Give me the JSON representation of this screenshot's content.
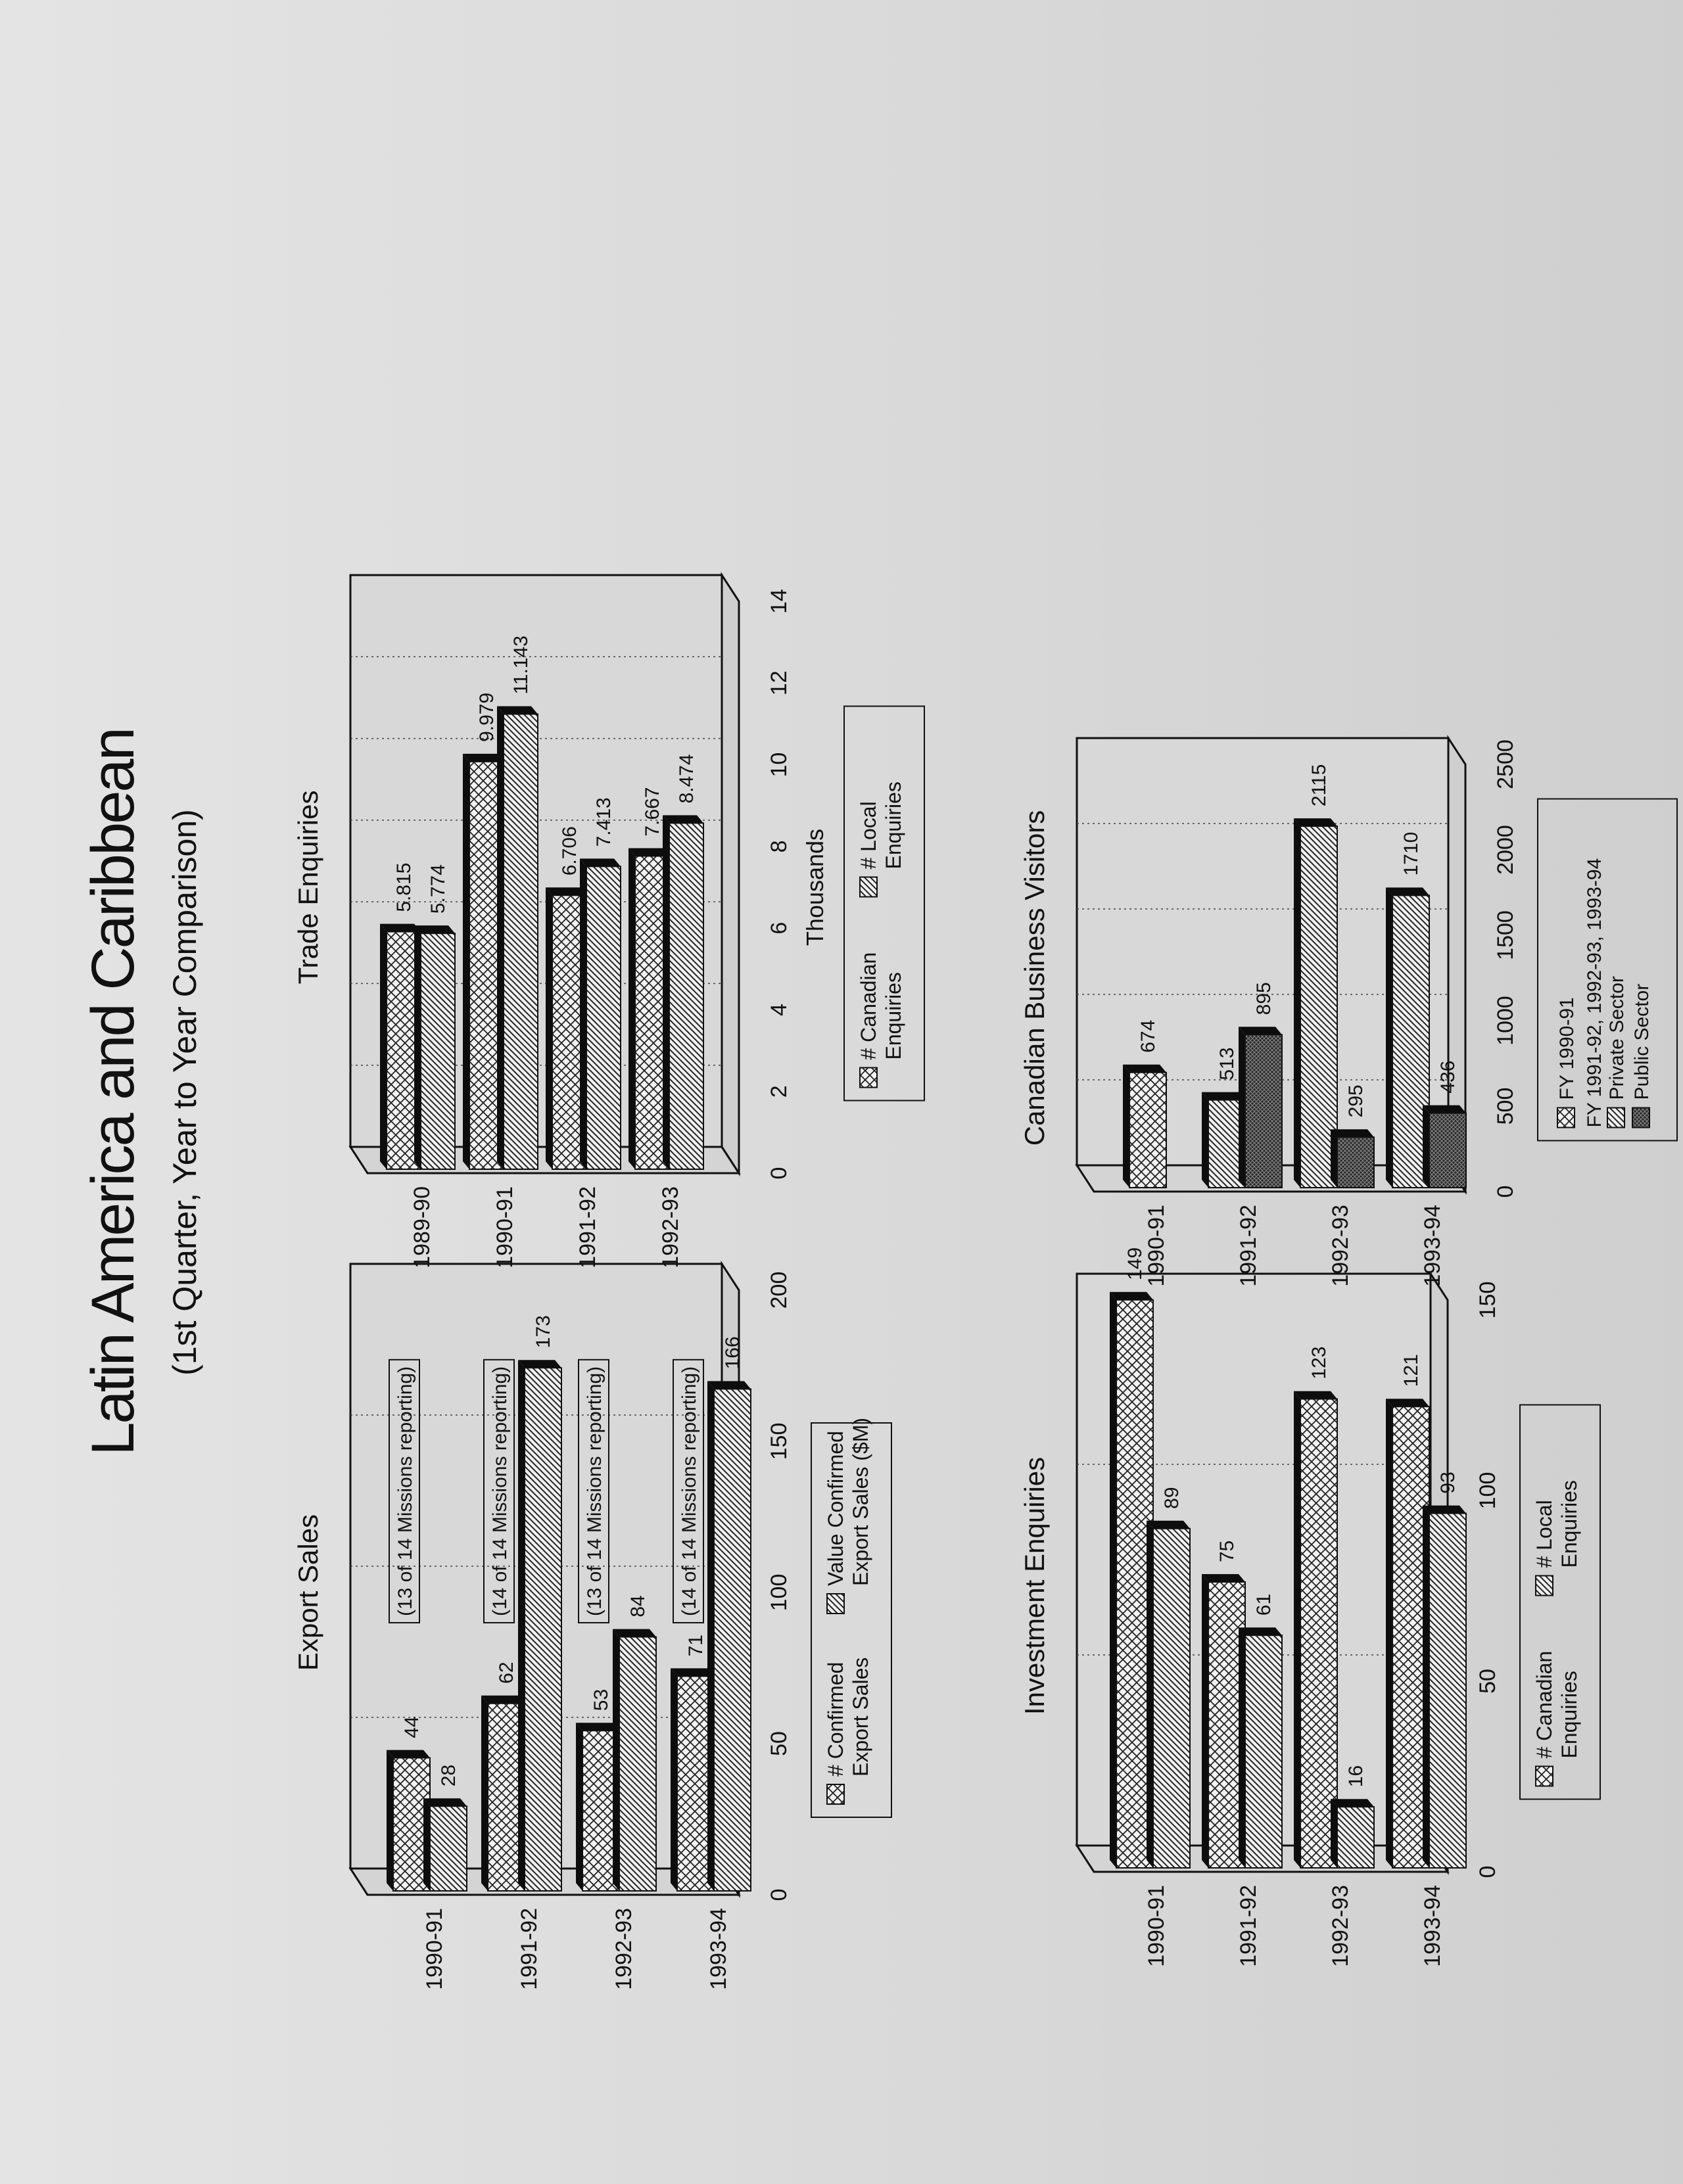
{
  "page": {
    "title": "Latin America and Caribbean",
    "subtitle": "(1st Quarter, Year to Year Comparison)"
  },
  "colors": {
    "page": "#dcdcdc",
    "ink": "#111111",
    "bar_top": "#0d0d0d"
  },
  "chart_data": [
    {
      "id": "export",
      "type": "bar",
      "orientation": "horizontal",
      "title": "Export Sales",
      "categories": [
        "1990-91",
        "1991-92",
        "1992-93",
        "1993-94"
      ],
      "series": [
        {
          "name": "# Confirmed Export Sales",
          "pattern": "crosshatch",
          "values": [
            44,
            62,
            53,
            71
          ]
        },
        {
          "name": "Value Confirmed Export Sales ($M)",
          "pattern": "diagonal",
          "values": [
            28,
            173,
            84,
            166
          ]
        }
      ],
      "value_labels": [
        [
          "44",
          "62",
          "53",
          "71"
        ],
        [
          "28",
          "173",
          "84",
          "166"
        ]
      ],
      "annotations": [
        "(13 of 14 Missions reporting)",
        "(14 of 14 Missions reporting)",
        "(13 of 14 Missions reporting)",
        "(14 of 14 Missions reporting)"
      ],
      "xlim": [
        0,
        200
      ],
      "ticks": [
        "0",
        "50",
        "100",
        "150",
        "200"
      ],
      "xlabel": "",
      "legend": [
        {
          "pattern": "crosshatch",
          "lines": [
            "# Confirmed",
            "Export Sales"
          ]
        },
        {
          "pattern": "diagonal",
          "lines": [
            "Value Confirmed",
            "Export Sales ($M)"
          ]
        }
      ],
      "legend_placement": "below",
      "grid": true
    },
    {
      "id": "trade",
      "type": "bar",
      "orientation": "horizontal",
      "title": "Trade Enquiries",
      "categories": [
        "1989-90",
        "1990-91",
        "1991-92",
        "1992-93"
      ],
      "series": [
        {
          "name": "# Canadian Enquiries",
          "pattern": "crosshatch",
          "values": [
            5.815,
            9.979,
            6.706,
            7.667
          ]
        },
        {
          "name": "# Local Enquiries",
          "pattern": "diagonal",
          "values": [
            5.774,
            11.143,
            7.413,
            8.474
          ]
        }
      ],
      "value_labels": [
        [
          "5.815",
          "9.979",
          "6.706",
          "7.667"
        ],
        [
          "5.774",
          "11.143",
          "7.413",
          "8.474"
        ]
      ],
      "annotations": [],
      "xlim": [
        0,
        14
      ],
      "ticks": [
        "0",
        "2",
        "4",
        "6",
        "8",
        "10",
        "12",
        "14"
      ],
      "xlabel": "Thousands",
      "legend": [
        {
          "pattern": "crosshatch",
          "lines": [
            "# Canadian",
            "Enquiries"
          ]
        },
        {
          "pattern": "diagonal",
          "lines": [
            "# Local",
            "Enquiries"
          ]
        }
      ],
      "legend_placement": "below",
      "grid": true
    },
    {
      "id": "invest",
      "type": "bar",
      "orientation": "horizontal",
      "title": "Investment Enquiries",
      "categories": [
        "1990-91",
        "1991-92",
        "1992-93",
        "1993-94"
      ],
      "series": [
        {
          "name": "# Canadian Enquiries",
          "pattern": "crosshatch",
          "values": [
            149,
            75,
            123,
            121
          ]
        },
        {
          "name": "# Local Enquiries",
          "pattern": "diagonal",
          "values": [
            89,
            61,
            16,
            93
          ]
        }
      ],
      "value_labels": [
        [
          "149",
          "75",
          "123",
          "121"
        ],
        [
          "89",
          "61",
          "16",
          "93"
        ]
      ],
      "annotations": [],
      "xlim": [
        0,
        150
      ],
      "ticks": [
        "0",
        "50",
        "100",
        "150"
      ],
      "xlabel": "",
      "legend": [
        {
          "pattern": "crosshatch",
          "lines": [
            "# Canadian",
            "Enquiries"
          ]
        },
        {
          "pattern": "diagonal",
          "lines": [
            "# Local",
            "Enquiries"
          ]
        }
      ],
      "legend_placement": "below",
      "grid": true
    },
    {
      "id": "visitors",
      "type": "bar",
      "orientation": "horizontal",
      "title": "Canadian Business Visitors",
      "categories": [
        "1990-91",
        "1991-92",
        "1992-93",
        "1993-94"
      ],
      "series": [
        {
          "name": "FY 1990-91",
          "pattern": "crosshatch",
          "values": [
            674,
            null,
            null,
            null
          ]
        },
        {
          "name": "Private Sector",
          "pattern": "diagonal",
          "values": [
            null,
            513,
            2115,
            1710
          ]
        },
        {
          "name": "Public Sector",
          "pattern": "dense",
          "values": [
            null,
            895,
            295,
            436
          ]
        }
      ],
      "value_labels": [
        [
          "674",
          "",
          "",
          ""
        ],
        [
          "",
          "513",
          "2115",
          "1710"
        ],
        [
          "",
          "895",
          "295",
          "436"
        ]
      ],
      "annotations": [],
      "xlim": [
        0,
        2500
      ],
      "ticks": [
        "0",
        "500",
        "1000",
        "1500",
        "2000",
        "2500"
      ],
      "xlabel": "",
      "legend_header": "FY 1991-92, 1992-93, 1993-94",
      "legend": [
        {
          "pattern": "crosshatch",
          "lines": [
            "FY 1990-91"
          ]
        },
        {
          "pattern": "diagonal",
          "lines": [
            "Private Sector"
          ]
        },
        {
          "pattern": "dense",
          "lines": [
            "Public Sector"
          ]
        }
      ],
      "legend_placement": "below",
      "grid": true
    }
  ]
}
